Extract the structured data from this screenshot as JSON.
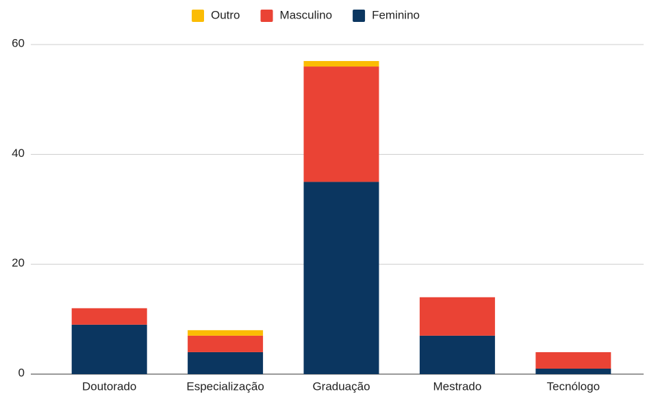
{
  "chart_data": {
    "type": "stacked_bar",
    "categories": [
      "Doutorado",
      "Especialização",
      "Graduação",
      "Mestrado",
      "Tecnólogo"
    ],
    "series": [
      {
        "name": "Feminino",
        "color": "#0b3660",
        "values": [
          9,
          4,
          35,
          7,
          1
        ]
      },
      {
        "name": "Masculino",
        "color": "#ea4335",
        "values": [
          3,
          3,
          21,
          7,
          3
        ]
      },
      {
        "name": "Outro",
        "color": "#fbbc04",
        "values": [
          0,
          1,
          1,
          0,
          0
        ]
      }
    ],
    "ylim": [
      0,
      60
    ],
    "yticks": [
      0,
      20,
      40,
      60
    ],
    "grid": true,
    "legend": "top"
  }
}
